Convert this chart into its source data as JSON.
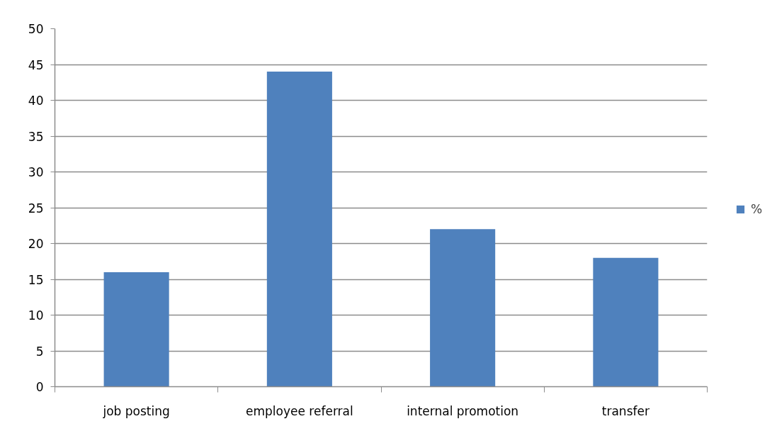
{
  "chart_data": {
    "type": "bar",
    "categories": [
      "job posting",
      "employee referral",
      "internal promotion",
      "transfer"
    ],
    "series": [
      {
        "name": "%",
        "color": "#4f81bd",
        "values": [
          16,
          44,
          22,
          18
        ]
      }
    ],
    "ylim": [
      0,
      50
    ],
    "yticks": [
      0,
      5,
      10,
      15,
      20,
      25,
      30,
      35,
      40,
      45,
      50
    ],
    "grid": "y",
    "legend": "right"
  }
}
